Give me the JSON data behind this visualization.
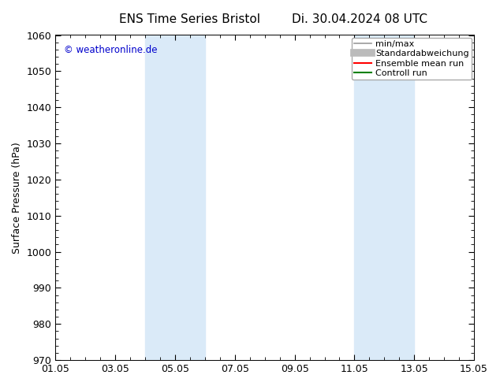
{
  "title": "ENS Time Series Bristol",
  "title2": "Di. 30.04.2024 08 UTC",
  "ylabel": "Surface Pressure (hPa)",
  "ylim": [
    970,
    1060
  ],
  "yticks": [
    970,
    980,
    990,
    1000,
    1010,
    1020,
    1030,
    1040,
    1050,
    1060
  ],
  "xtick_labels": [
    "01.05",
    "03.05",
    "05.05",
    "07.05",
    "09.05",
    "11.05",
    "13.05",
    "15.05"
  ],
  "xtick_positions": [
    0,
    2,
    4,
    6,
    8,
    10,
    12,
    14
  ],
  "xlim": [
    0,
    14
  ],
  "shaded_regions": [
    {
      "start": 3.0,
      "end": 5.0
    },
    {
      "start": 10.0,
      "end": 12.0
    }
  ],
  "shaded_color": "#daeaf8",
  "watermark_text": "© weatheronline.de",
  "watermark_color": "#0000cc",
  "legend_items": [
    {
      "label": "min/max",
      "color": "#999999",
      "lw": 1.2,
      "style": "-"
    },
    {
      "label": "Standardabweichung",
      "color": "#bbbbbb",
      "lw": 7,
      "style": "-"
    },
    {
      "label": "Ensemble mean run",
      "color": "#ff0000",
      "lw": 1.5,
      "style": "-"
    },
    {
      "label": "Controll run",
      "color": "#008000",
      "lw": 1.5,
      "style": "-"
    }
  ],
  "bg_color": "#ffffff",
  "axis_color": "#000000",
  "font_size": 9,
  "title_font_size": 11
}
